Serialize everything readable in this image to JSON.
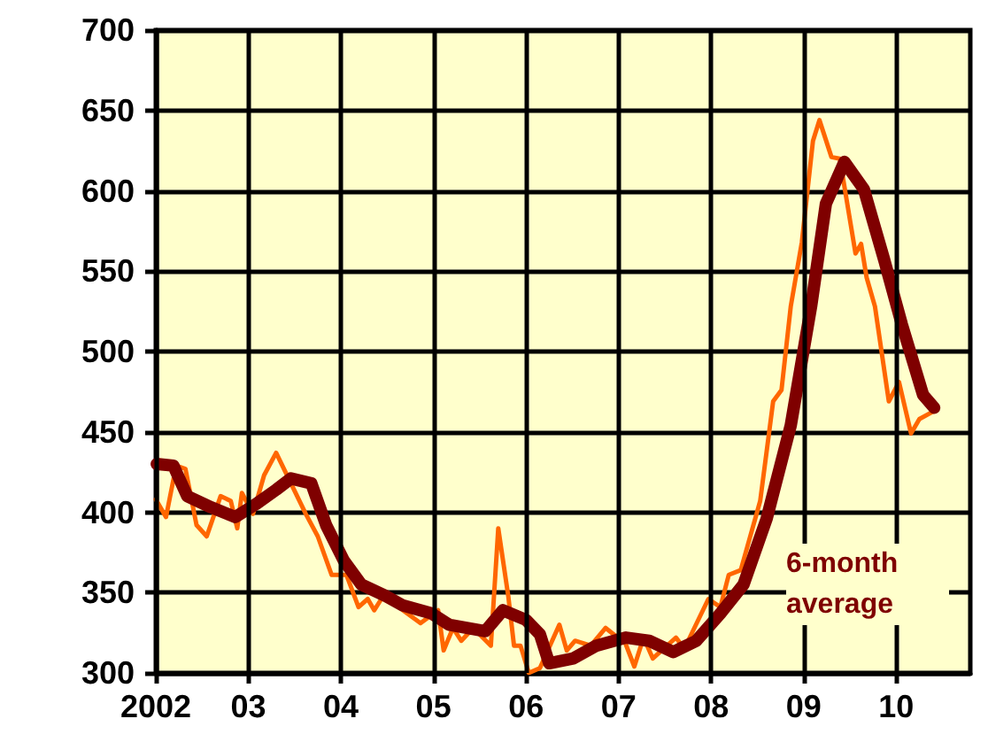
{
  "chart_data": {
    "type": "line",
    "xlim": [
      2002,
      2010.8
    ],
    "xticks": [
      {
        "value": 2002,
        "label": "2002"
      },
      {
        "value": 2003,
        "label": "03"
      },
      {
        "value": 2004,
        "label": "04"
      },
      {
        "value": 2005,
        "label": "05"
      },
      {
        "value": 2006,
        "label": "06"
      },
      {
        "value": 2007,
        "label": "07"
      },
      {
        "value": 2008,
        "label": "08"
      },
      {
        "value": 2009,
        "label": "09"
      },
      {
        "value": 2010,
        "label": "10"
      }
    ],
    "ylim": [
      300,
      700
    ],
    "yticks": [
      300,
      350,
      400,
      450,
      500,
      550,
      600,
      650,
      700
    ],
    "grid": true,
    "marker": "none",
    "line_style": "solid",
    "series": [
      {
        "color": "#ff6600",
        "x": [
          2002.0,
          2002.11,
          2002.22,
          2002.32,
          2002.44,
          2002.55,
          2002.7,
          2002.81,
          2002.88,
          2002.93,
          2003.05,
          2003.17,
          2003.3,
          2003.46,
          2003.62,
          2003.75,
          2003.9,
          2004.06,
          2004.19,
          2004.29,
          2004.36,
          2004.48,
          2004.67,
          2004.86,
          2005.05,
          2005.11,
          2005.21,
          2005.3,
          2005.43,
          2005.62,
          2005.7,
          2005.81,
          2005.87,
          2005.94,
          2006.03,
          2006.15,
          2006.36,
          2006.44,
          2006.53,
          2006.7,
          2006.86,
          2006.99,
          2007.05,
          2007.17,
          2007.27,
          2007.37,
          2007.62,
          2007.71,
          2007.97,
          2008.1,
          2008.19,
          2008.32,
          2008.53,
          2008.67,
          2008.76,
          2008.86,
          2008.98,
          2009.1,
          2009.17,
          2009.3,
          2009.39,
          2009.56,
          2009.62,
          2009.68,
          2009.77,
          2009.92,
          2010.03,
          2010.16,
          2010.25,
          2010.41
        ],
        "values": [
          408,
          397,
          429,
          427,
          392,
          385,
          410,
          407,
          390,
          412,
          399,
          423,
          437,
          418,
          399,
          385,
          361,
          361,
          341,
          346,
          339,
          350,
          339,
          331,
          339,
          314,
          328,
          320,
          328,
          317,
          390,
          347,
          317,
          317,
          300,
          303,
          330,
          314,
          320,
          317,
          328,
          322,
          322,
          304,
          322,
          309,
          322,
          315,
          346,
          341,
          361,
          364,
          407,
          469,
          476,
          528,
          568,
          631,
          644,
          621,
          620,
          561,
          567,
          546,
          528,
          469,
          481,
          449,
          458,
          463
        ]
      },
      {
        "name": "6-month average",
        "color": "#7f0000",
        "x": [
          2002.01,
          2002.19,
          2002.34,
          2002.6,
          2002.86,
          2003.08,
          2003.3,
          2003.46,
          2003.68,
          2003.84,
          2004.03,
          2004.22,
          2004.48,
          2004.67,
          2004.98,
          2005.17,
          2005.56,
          2005.75,
          2006.0,
          2006.15,
          2006.25,
          2006.51,
          2006.76,
          2007.08,
          2007.33,
          2007.59,
          2007.84,
          2008.1,
          2008.35,
          2008.6,
          2008.86,
          2009.08,
          2009.24,
          2009.44,
          2009.65,
          2009.87,
          2010.06,
          2010.29,
          2010.41
        ],
        "values": [
          430,
          429,
          410,
          403,
          397,
          405,
          414,
          421,
          418,
          392,
          370,
          355,
          348,
          342,
          337,
          330,
          326,
          339,
          333,
          324,
          306,
          309,
          317,
          322,
          320,
          313,
          320,
          337,
          355,
          396,
          454,
          528,
          592,
          618,
          601,
          557,
          517,
          473,
          465
        ]
      }
    ]
  }
}
